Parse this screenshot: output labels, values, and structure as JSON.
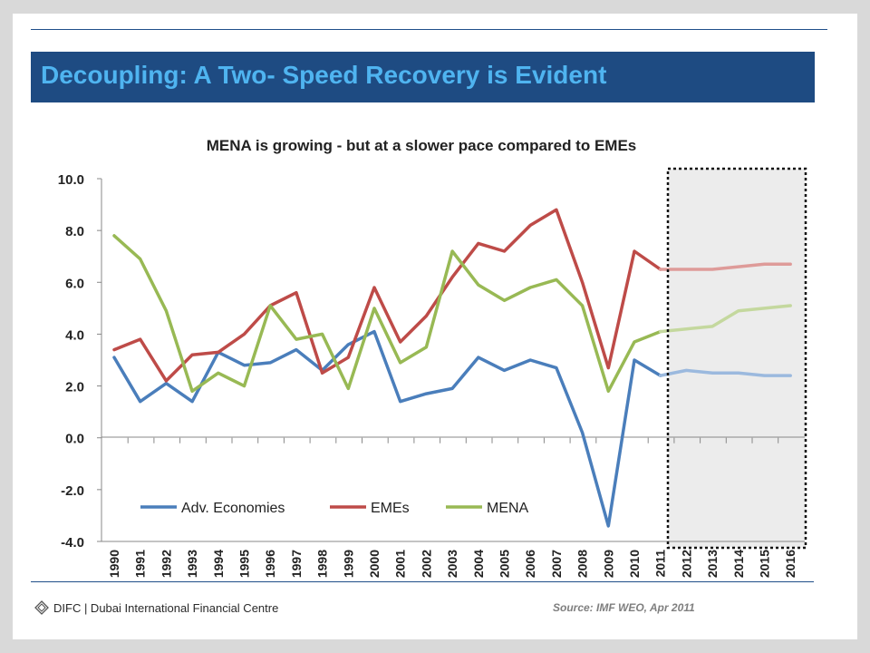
{
  "slide": {
    "title": "Decoupling: A Two- Speed Recovery is Evident",
    "source": "Source: IMF WEO, Apr 2011",
    "logo_text": "DIFC | Dubai International Financial Centre",
    "colors": {
      "title_bar": "#1e4b82",
      "title_text": "#4fb4f0",
      "rule": "#1f4e89"
    }
  },
  "chart_data": {
    "type": "line",
    "title": "MENA is growing - but at a slower pace compared to EMEs",
    "xlabel": "",
    "ylabel": "",
    "ylim": [
      -4.0,
      10.0
    ],
    "y_ticks": [
      "-4.0",
      "-2.0",
      "0.0",
      "2.0",
      "4.0",
      "6.0",
      "8.0",
      "10.0"
    ],
    "x": [
      "1990",
      "1991",
      "1992",
      "1993",
      "1994",
      "1995",
      "1996",
      "1997",
      "1998",
      "1999",
      "2000",
      "2001",
      "2002",
      "2003",
      "2004",
      "2005",
      "2006",
      "2007",
      "2008",
      "2009",
      "2010",
      "2011",
      "2012",
      "2013",
      "2014",
      "2015",
      "2016"
    ],
    "projection_start": "2012",
    "projection_end": "2016",
    "grid": false,
    "legend_position": "bottom-left inside",
    "series": [
      {
        "name": "Adv. Economies",
        "color": "#4a7ebb",
        "projection_color": "#9bb9de",
        "values": [
          3.1,
          1.4,
          2.1,
          1.4,
          3.3,
          2.8,
          2.9,
          3.4,
          2.6,
          3.6,
          4.1,
          1.4,
          1.7,
          1.9,
          3.1,
          2.6,
          3.0,
          2.7,
          0.2,
          -3.4,
          3.0,
          2.4,
          2.6,
          2.5,
          2.5,
          2.4,
          2.4
        ]
      },
      {
        "name": "EMEs",
        "color": "#be4b48",
        "projection_color": "#de9b99",
        "values": [
          3.4,
          3.8,
          2.2,
          3.2,
          3.3,
          4.0,
          5.1,
          5.6,
          2.5,
          3.1,
          5.8,
          3.7,
          4.7,
          6.2,
          7.5,
          7.2,
          8.2,
          8.8,
          6.0,
          2.7,
          7.2,
          6.5,
          6.5,
          6.5,
          6.6,
          6.7,
          6.7
        ]
      },
      {
        "name": "MENA",
        "color": "#98b954",
        "projection_color": "#c4d89e",
        "values": [
          7.8,
          6.9,
          4.9,
          1.8,
          2.5,
          2.0,
          5.1,
          3.8,
          4.0,
          1.9,
          5.0,
          2.9,
          3.5,
          7.2,
          5.9,
          5.3,
          5.8,
          6.1,
          5.1,
          1.8,
          3.7,
          4.1,
          4.2,
          4.3,
          4.9,
          5.0,
          5.1
        ]
      }
    ]
  }
}
